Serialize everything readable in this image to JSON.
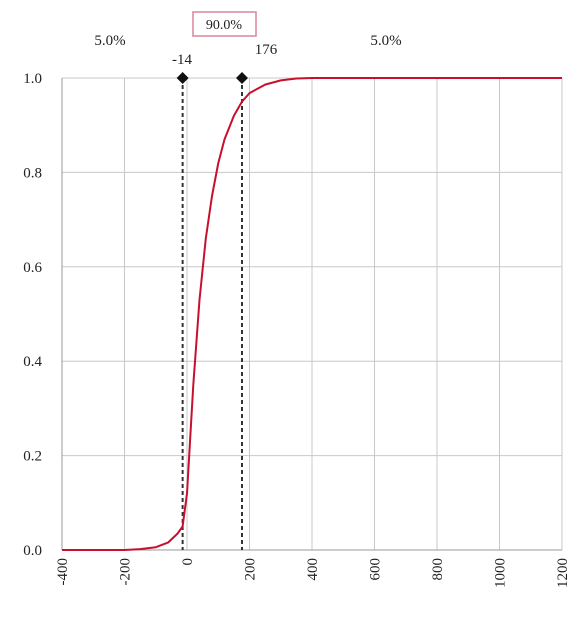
{
  "chart_data": {
    "type": "line",
    "title": "",
    "xlabel": "",
    "ylabel": "",
    "xlim": [
      -400,
      1200
    ],
    "ylim": [
      0,
      1
    ],
    "x_ticks": [
      "-400",
      "-200",
      "0",
      "200",
      "400",
      "600",
      "800",
      "1000",
      "1200"
    ],
    "y_ticks": [
      "0.0",
      "0.2",
      "0.4",
      "0.6",
      "0.8",
      "1.0"
    ],
    "grid": "vertical and horizontal",
    "series": [
      {
        "color": "#c8102e",
        "x": [
          -400,
          -200,
          -150,
          -100,
          -60,
          -30,
          -14,
          0,
          20,
          40,
          60,
          80,
          100,
          120,
          150,
          176,
          200,
          250,
          300,
          350,
          400,
          500,
          600,
          800,
          1000,
          1200
        ],
        "y": [
          0.0,
          0.0,
          0.002,
          0.006,
          0.016,
          0.035,
          0.05,
          0.12,
          0.35,
          0.53,
          0.66,
          0.75,
          0.82,
          0.87,
          0.92,
          0.95,
          0.968,
          0.986,
          0.995,
          0.999,
          1.0,
          1.0,
          1.0,
          1.0,
          1.0,
          1.0
        ]
      }
    ],
    "markers": [
      {
        "x": -14,
        "label": "-14"
      },
      {
        "x": 176,
        "label": "176"
      }
    ],
    "regions": {
      "left": "5.0%",
      "middle": "90.0%",
      "right": "5.0%"
    },
    "colors": {
      "curve": "#c8102e",
      "middle_box": "#d9859a",
      "grid": "#c8c8c8",
      "marker_line": "#333333"
    }
  }
}
